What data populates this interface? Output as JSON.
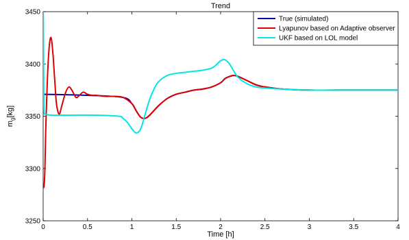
{
  "chart_data": {
    "type": "line",
    "title": "Trend",
    "xlabel": "Time [h]",
    "ylabel_main": "m",
    "ylabel_sub": "g",
    "ylabel_unit": "[kg]",
    "xlim": [
      0,
      4
    ],
    "ylim": [
      3250,
      3450
    ],
    "xticks": [
      0,
      0.5,
      1,
      1.5,
      2,
      2.5,
      3,
      3.5,
      4
    ],
    "xtick_labels": [
      "0",
      "0.5",
      "1",
      "1.5",
      "2",
      "2.5",
      "3",
      "3.5",
      "4"
    ],
    "yticks": [
      3250,
      3300,
      3350,
      3400,
      3450
    ],
    "ytick_labels": [
      "3250",
      "3300",
      "3350",
      "3400",
      "3450"
    ],
    "grid": false,
    "legend_position": "top-right",
    "series": [
      {
        "name": "True (simulated)",
        "color": "#0000aa",
        "x": [
          0,
          0.5,
          0.9,
          1.0,
          1.05,
          1.1,
          1.15,
          1.2,
          1.3,
          1.4,
          1.5,
          1.6,
          1.7,
          1.8,
          1.9,
          2.0,
          2.05,
          2.1,
          2.15,
          2.2,
          2.3,
          2.4,
          2.5,
          2.7,
          3.0,
          3.5,
          4.0
        ],
        "y": [
          3371,
          3370,
          3368,
          3362,
          3355,
          3349,
          3348,
          3351,
          3360,
          3367,
          3371,
          3373,
          3375,
          3376,
          3378,
          3382,
          3386,
          3388,
          3389,
          3388,
          3384,
          3380,
          3378,
          3376,
          3375,
          3375,
          3375
        ]
      },
      {
        "name": "Lyapunov based on Adaptive observer",
        "color": "#dd0000",
        "x": [
          0,
          0.01,
          0.02,
          0.03,
          0.05,
          0.07,
          0.09,
          0.11,
          0.13,
          0.15,
          0.18,
          0.21,
          0.25,
          0.29,
          0.33,
          0.37,
          0.41,
          0.45,
          0.5,
          0.55,
          0.6,
          0.7,
          0.8,
          0.9,
          1.0,
          1.05,
          1.1,
          1.15,
          1.2,
          1.3,
          1.4,
          1.5,
          1.6,
          1.7,
          1.8,
          1.9,
          2.0,
          2.05,
          2.1,
          2.15,
          2.2,
          2.3,
          2.4,
          2.5,
          2.7,
          3.0,
          3.5,
          4.0
        ],
        "y": [
          3283,
          3283,
          3300,
          3340,
          3390,
          3418,
          3425,
          3410,
          3385,
          3362,
          3352,
          3360,
          3372,
          3378,
          3374,
          3368,
          3370,
          3373,
          3371,
          3370,
          3370,
          3369,
          3369,
          3368,
          3362,
          3355,
          3349,
          3348,
          3351,
          3360,
          3367,
          3371,
          3373,
          3375,
          3376,
          3378,
          3382,
          3386,
          3388,
          3389,
          3388,
          3384,
          3380,
          3378,
          3376,
          3375,
          3375,
          3375
        ]
      },
      {
        "name": "UKF based on LOL model",
        "color": "#00e5e5",
        "x": [
          0,
          0.003,
          0.006,
          0.01,
          0.03,
          0.1,
          0.3,
          0.6,
          0.85,
          0.9,
          0.95,
          1.0,
          1.05,
          1.1,
          1.15,
          1.2,
          1.25,
          1.3,
          1.4,
          1.5,
          1.6,
          1.7,
          1.8,
          1.9,
          1.95,
          2.0,
          2.05,
          2.1,
          2.15,
          2.2,
          2.3,
          2.4,
          2.5,
          2.7,
          3.0,
          3.5,
          4.0
        ],
        "y": [
          3450,
          3440,
          3380,
          3355,
          3352,
          3351,
          3351,
          3351,
          3350,
          3348,
          3344,
          3338,
          3334,
          3338,
          3352,
          3366,
          3376,
          3383,
          3389,
          3391,
          3392,
          3393,
          3394,
          3396,
          3399,
          3403,
          3404,
          3400,
          3393,
          3387,
          3381,
          3378,
          3377,
          3376,
          3375,
          3375,
          3375
        ]
      }
    ]
  }
}
